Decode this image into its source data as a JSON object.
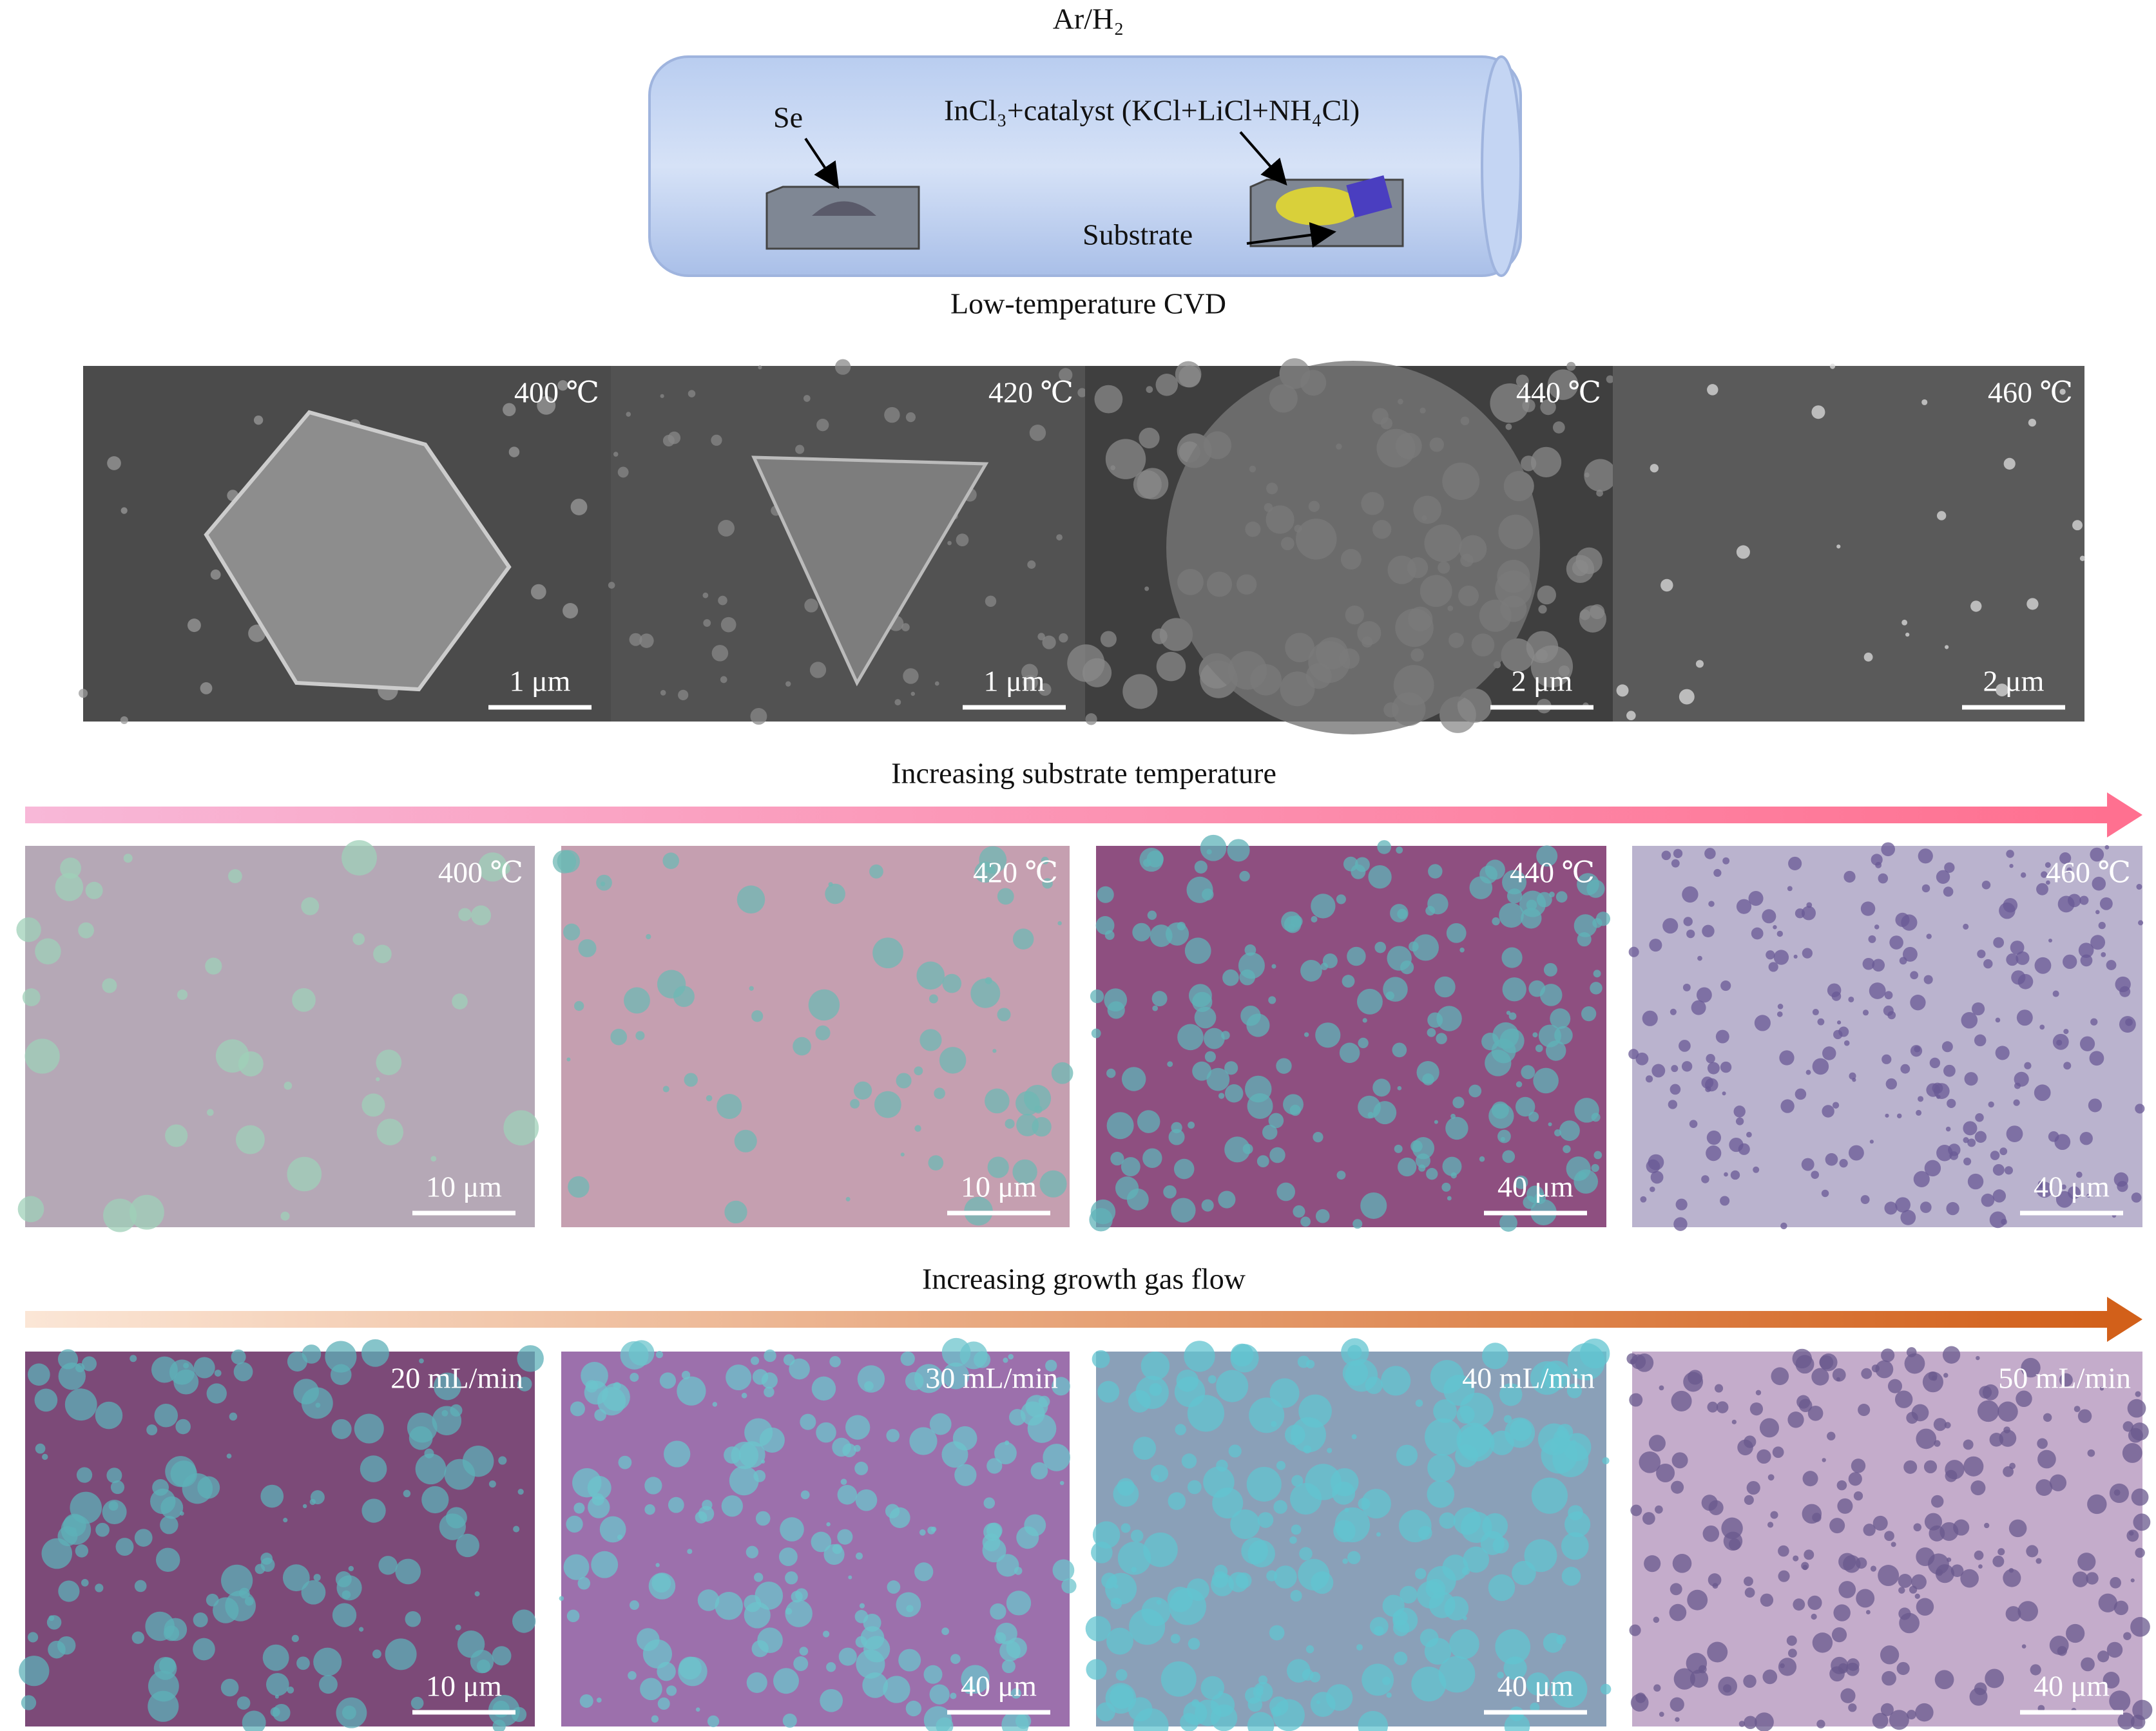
{
  "schematic": {
    "gas": "Ar/H₂",
    "source": "Se",
    "precursor": "InCl₃+catalyst (KCl+LiCl+NH₄Cl)",
    "substrate": "Substrate",
    "caption": "Low-temperature CVD"
  },
  "sem_panels": [
    {
      "label": "400 ℃",
      "scale": "1 μm"
    },
    {
      "label": "420 ℃",
      "scale": "1 μm"
    },
    {
      "label": "440 ℃",
      "scale": "2 μm"
    },
    {
      "label": "460 ℃",
      "scale": "2 μm"
    }
  ],
  "temperature_arrow": "Increasing substrate temperature",
  "temperature_panels": [
    {
      "label": "400 ℃",
      "scale": "10 μm"
    },
    {
      "label": "420 ℃",
      "scale": "10 μm"
    },
    {
      "label": "440 ℃",
      "scale": "40 μm"
    },
    {
      "label": "460 ℃",
      "scale": "40 μm"
    }
  ],
  "flow_arrow": "Increasing growth gas flow",
  "flow_panels": [
    {
      "label": "20 mL/min",
      "scale": "10 μm"
    },
    {
      "label": "30 mL/min",
      "scale": "40 μm"
    },
    {
      "label": "40 mL/min",
      "scale": "40 μm"
    },
    {
      "label": "50 mL/min",
      "scale": "40 μm"
    }
  ]
}
